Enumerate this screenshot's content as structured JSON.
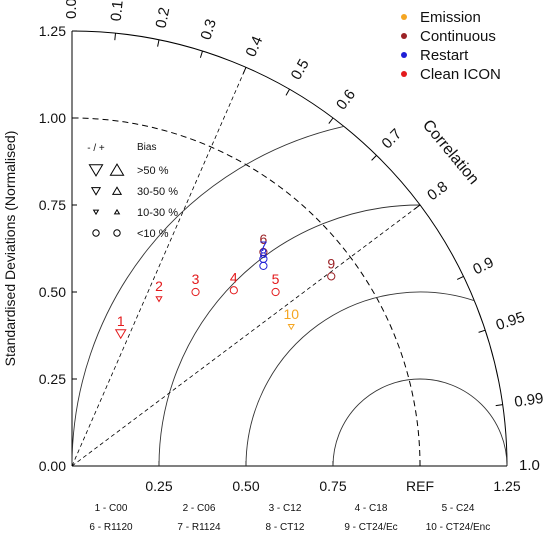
{
  "chart_data": {
    "type": "scatter",
    "subtype": "taylor-diagram",
    "ylabel": "Standardised Deviations (Normalised)",
    "arc_label": "Correlation",
    "ref_label": "REF",
    "std_ticks": [
      "0.00",
      "0.25",
      "0.50",
      "0.75",
      "1.00",
      "1.25"
    ],
    "x_ticks": [
      "0.25",
      "0.50",
      "0.75",
      "1.25"
    ],
    "xlim": [
      0,
      1.25
    ],
    "ylim": [
      0,
      1.25
    ],
    "corr_ticks": [
      {
        "value": 0.0,
        "label": "0.0"
      },
      {
        "value": 0.1,
        "label": "0.1"
      },
      {
        "value": 0.2,
        "label": "0.2"
      },
      {
        "value": 0.3,
        "label": "0.3"
      },
      {
        "value": 0.4,
        "label": "0.4"
      },
      {
        "value": 0.5,
        "label": "0.5"
      },
      {
        "value": 0.6,
        "label": "0.6"
      },
      {
        "value": 0.7,
        "label": "0.7"
      },
      {
        "value": 0.8,
        "label": "0.8"
      },
      {
        "value": 0.9,
        "label": "0.9"
      },
      {
        "value": 0.95,
        "label": "0.95"
      },
      {
        "value": 0.99,
        "label": "0.99"
      },
      {
        "value": 1.0,
        "label": "1.0"
      }
    ],
    "legend": [
      {
        "name": "Emission",
        "color": "#f5a623"
      },
      {
        "name": "Continuous",
        "color": "#9b2226"
      },
      {
        "name": "Restart",
        "color": "#1f1fd6"
      },
      {
        "name": "Clean ICON",
        "color": "#e31a1c"
      }
    ],
    "bias_legend": {
      "header_signs": "- / +",
      "header": "Bias",
      "rows": [
        {
          "label": ">50 %",
          "kind": "triangle",
          "size": 11
        },
        {
          "label": "30-50 %",
          "kind": "triangle",
          "size": 7
        },
        {
          "label": "10-30 %",
          "kind": "triangle",
          "size": 4
        },
        {
          "label": "<10 %",
          "kind": "circle",
          "size": 3.2
        }
      ]
    },
    "points": [
      {
        "id": "1",
        "x": 0.14,
        "y": 0.38,
        "color": "#e31a1c",
        "marker": "tri-down-large"
      },
      {
        "id": "2",
        "x": 0.25,
        "y": 0.48,
        "color": "#e31a1c",
        "marker": "tri-down-small"
      },
      {
        "id": "3",
        "x": 0.355,
        "y": 0.5,
        "color": "#e31a1c",
        "marker": "circle"
      },
      {
        "id": "4",
        "x": 0.465,
        "y": 0.505,
        "color": "#e31a1c",
        "marker": "circle"
      },
      {
        "id": "5",
        "x": 0.585,
        "y": 0.5,
        "color": "#e31a1c",
        "marker": "circle"
      },
      {
        "id": "6",
        "x": 0.55,
        "y": 0.615,
        "color": "#9b2226",
        "marker": "circle"
      },
      {
        "id": "7",
        "x": 0.55,
        "y": 0.595,
        "color": "#1f1fd6",
        "marker": "circle"
      },
      {
        "id": "8",
        "x": 0.55,
        "y": 0.575,
        "color": "#1f1fd6",
        "marker": "circle"
      },
      {
        "id": "9",
        "x": 0.745,
        "y": 0.545,
        "color": "#9b2226",
        "marker": "circle"
      },
      {
        "id": "10",
        "x": 0.63,
        "y": 0.4,
        "color": "#f5a623",
        "marker": "tri-down-small"
      }
    ],
    "key": [
      "1 - C00",
      "2 - C06",
      "3 - C12",
      "4 - C18",
      "5 - C24",
      "6 - R1120",
      "7 - R1124",
      "8 - CT12",
      "9 - CT24/Ec",
      "10 - CT24/Enc"
    ]
  }
}
